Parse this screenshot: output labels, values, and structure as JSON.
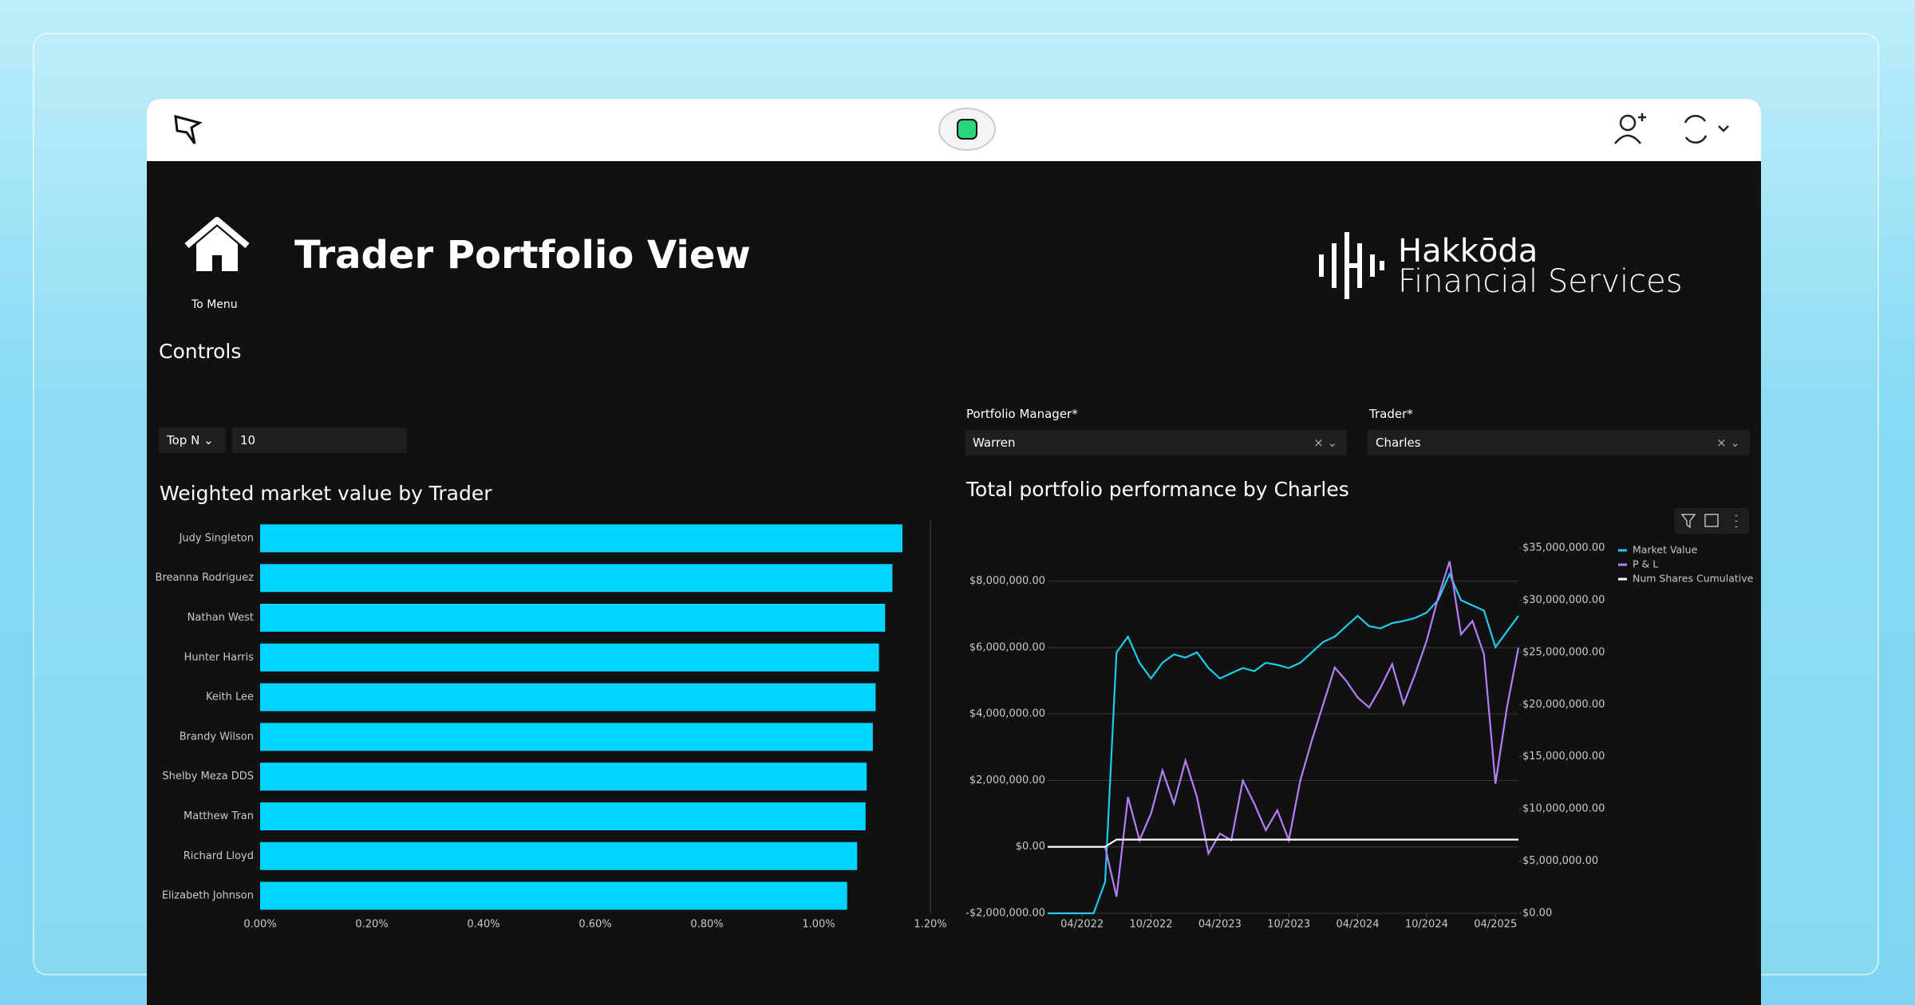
{
  "header": {
    "title": "Trader Portfolio View",
    "menu_label": "To Menu",
    "brand": "Hakkōda",
    "brand_sub": "Financial Services"
  },
  "controls": {
    "title": "Controls",
    "top_n_label": "Top N",
    "top_n_value": 10,
    "portfolio_manager_label": "Portfolio Manager*",
    "portfolio_manager_value": "Warren",
    "trader_label": "Trader*",
    "trader_value": "Charles"
  },
  "chart_data": [
    {
      "type": "bar",
      "orientation": "horizontal",
      "title": "Weighted market value by Trader",
      "categories": [
        "Judy Singleton",
        "Breanna Rodriguez",
        "Nathan West",
        "Hunter Harris",
        "Keith Lee",
        "Brandy Wilson",
        "Shelby Meza DDS",
        "Matthew Tran",
        "Richard Lloyd",
        "Elizabeth Johnson"
      ],
      "values": [
        1.15,
        1.132,
        1.119,
        1.108,
        1.102,
        1.097,
        1.086,
        1.084,
        1.069,
        1.051
      ],
      "color": "#00d4ff",
      "xlim": [
        0,
        1.2
      ],
      "xticks": [
        {
          "value": 0,
          "label": "0.00%"
        },
        {
          "value": 0.2,
          "label": "0.20%"
        },
        {
          "value": 0.4,
          "label": "0.40%"
        },
        {
          "value": 0.6,
          "label": "0.60%"
        },
        {
          "value": 0.8,
          "label": "0.80%"
        },
        {
          "value": 1.0,
          "label": "1.00%"
        },
        {
          "value": 1.2,
          "label": "1.20%"
        }
      ],
      "grid": false
    },
    {
      "type": "line",
      "title": "Total portfolio performance by Charles",
      "x": [
        "01/2022",
        "02/2022",
        "03/2022",
        "04/2022",
        "05/2022",
        "06/2022",
        "07/2022",
        "08/2022",
        "09/2022",
        "10/2022",
        "11/2022",
        "12/2022",
        "01/2023",
        "02/2023",
        "03/2023",
        "04/2023",
        "05/2023",
        "06/2023",
        "07/2023",
        "08/2023",
        "09/2023",
        "10/2023",
        "11/2023",
        "12/2023",
        "01/2024",
        "02/2024",
        "03/2024",
        "04/2024",
        "05/2024",
        "06/2024",
        "07/2024",
        "08/2024",
        "09/2024",
        "10/2024",
        "11/2024",
        "12/2024",
        "01/2025",
        "02/2025",
        "03/2025",
        "04/2025",
        "05/2025",
        "06/2025"
      ],
      "xticks": [
        "04/2022",
        "10/2022",
        "04/2023",
        "10/2023",
        "04/2024",
        "10/2024",
        "04/2025"
      ],
      "series": [
        {
          "name": "Market Value",
          "color": "#1fcbef",
          "axis": "y2",
          "values": [
            0,
            0,
            0,
            0,
            0,
            3000000,
            25000000,
            26500000,
            24000000,
            22500000,
            24000000,
            24800000,
            24500000,
            25000000,
            23500000,
            22500000,
            23000000,
            23500000,
            23200000,
            24000000,
            23800000,
            23500000,
            24000000,
            25000000,
            26000000,
            26500000,
            27500000,
            28500000,
            27500000,
            27300000,
            27800000,
            28000000,
            28300000,
            28800000,
            30000000,
            32500000,
            30000000,
            29500000,
            29000000,
            25500000,
            27000000,
            28500000
          ]
        },
        {
          "name": "P & L",
          "color": "#b57ff5",
          "values": [
            0,
            0,
            0,
            0,
            0,
            0,
            -1500000,
            1500000,
            200000,
            1000000,
            2300000,
            1300000,
            2600000,
            1500000,
            -200000,
            400000,
            200000,
            2000000,
            1300000,
            500000,
            1100000,
            200000,
            2000000,
            3200000,
            4300000,
            5400000,
            5000000,
            4500000,
            4200000,
            4800000,
            5500000,
            4300000,
            5200000,
            6200000,
            7500000,
            8600000,
            6400000,
            6800000,
            5800000,
            1900000,
            4200000,
            6000000
          ]
        },
        {
          "name": "Num Shares Cumulative",
          "color": "#ffffff",
          "values": [
            0,
            0,
            0,
            0,
            0,
            0,
            220000,
            220000,
            220000,
            220000,
            220000,
            220000,
            220000,
            220000,
            220000,
            220000,
            220000,
            220000,
            220000,
            220000,
            220000,
            220000,
            220000,
            220000,
            220000,
            220000,
            220000,
            220000,
            220000,
            220000,
            220000,
            220000,
            220000,
            220000,
            220000,
            220000,
            220000,
            220000,
            220000,
            220000,
            220000,
            220000
          ]
        }
      ],
      "ylim": [
        -2000000,
        9000000
      ],
      "yticks": [
        {
          "value": -2000000,
          "label": "-$2,000,000.00"
        },
        {
          "value": 0,
          "label": "$0.00"
        },
        {
          "value": 2000000,
          "label": "$2,000,000.00"
        },
        {
          "value": 4000000,
          "label": "$4,000,000.00"
        },
        {
          "value": 6000000,
          "label": "$6,000,000.00"
        },
        {
          "value": 8000000,
          "label": "$8,000,000.00"
        }
      ],
      "y2lim": [
        0,
        35000000
      ],
      "y2ticks": [
        {
          "value": 0,
          "label": "$0.00"
        },
        {
          "value": 5000000,
          "label": "$5,000,000.00"
        },
        {
          "value": 10000000,
          "label": "$10,000,000.00"
        },
        {
          "value": 15000000,
          "label": "$15,000,000.00"
        },
        {
          "value": 20000000,
          "label": "$20,000,000.00"
        },
        {
          "value": 25000000,
          "label": "$25,000,000.00"
        },
        {
          "value": 30000000,
          "label": "$30,000,000.00"
        },
        {
          "value": 35000000,
          "label": "$35,000,000.00"
        }
      ],
      "grid": true,
      "legend": "top-right"
    }
  ]
}
